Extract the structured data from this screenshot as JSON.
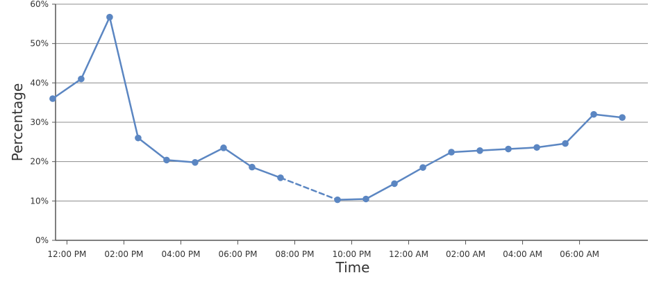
{
  "chart_data": {
    "type": "line",
    "xlabel": "Time",
    "ylabel": "Percentage",
    "ylim": [
      0,
      60
    ],
    "ytick_values": [
      0,
      10,
      20,
      30,
      40,
      50,
      60
    ],
    "ytick_labels": [
      "0%",
      "10%",
      "20%",
      "30%",
      "40%",
      "50%",
      "60%"
    ],
    "xtick_values": [
      12,
      14,
      16,
      18,
      20,
      22,
      24,
      26,
      28,
      30
    ],
    "xtick_labels": [
      "12:00 PM",
      "02:00 PM",
      "04:00 PM",
      "06:00 PM",
      "08:00 PM",
      "10:00 PM",
      "12:00 AM",
      "02:00 AM",
      "04:00 AM",
      "06:00 AM"
    ],
    "xlim": [
      11.6,
      32.4
    ],
    "grid": true,
    "color": "#5b86c2",
    "gap_style": "dashed",
    "series": [
      {
        "x": [
          11.5,
          12.5,
          13.5,
          14.5,
          15.5,
          16.5,
          17.5,
          18.5,
          19.5,
          21.5,
          22.5,
          23.5,
          24.5,
          25.5,
          26.5,
          27.5,
          28.5,
          29.5,
          30.5,
          31.5
        ],
        "y": [
          36,
          41,
          56.7,
          26,
          20.4,
          19.8,
          23.5,
          18.6,
          15.9,
          10.3,
          10.5,
          14.4,
          18.5,
          22.4,
          22.8,
          23.2,
          23.6,
          24.6,
          32,
          31.2
        ]
      }
    ]
  }
}
